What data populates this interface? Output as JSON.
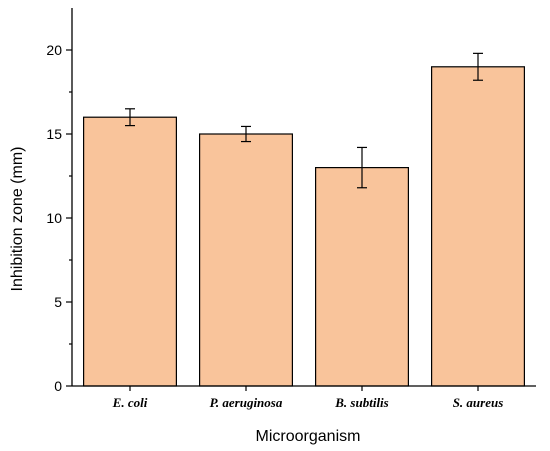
{
  "chart_data": {
    "type": "bar",
    "categories": [
      "E. coli",
      "P. aeruginosa",
      "B. subtilis",
      "S. aureus"
    ],
    "values": [
      16,
      15,
      13,
      19
    ],
    "errors": [
      0.5,
      0.45,
      1.2,
      0.8
    ],
    "xlabel": "Microorganism",
    "ylabel": "Inhibition zone (mm)",
    "ylim": [
      0,
      22.5
    ],
    "yticks": [
      0,
      5,
      10,
      15,
      20
    ],
    "grid": false,
    "bar_color": "#f9c49b",
    "edge_color": "#000000"
  }
}
